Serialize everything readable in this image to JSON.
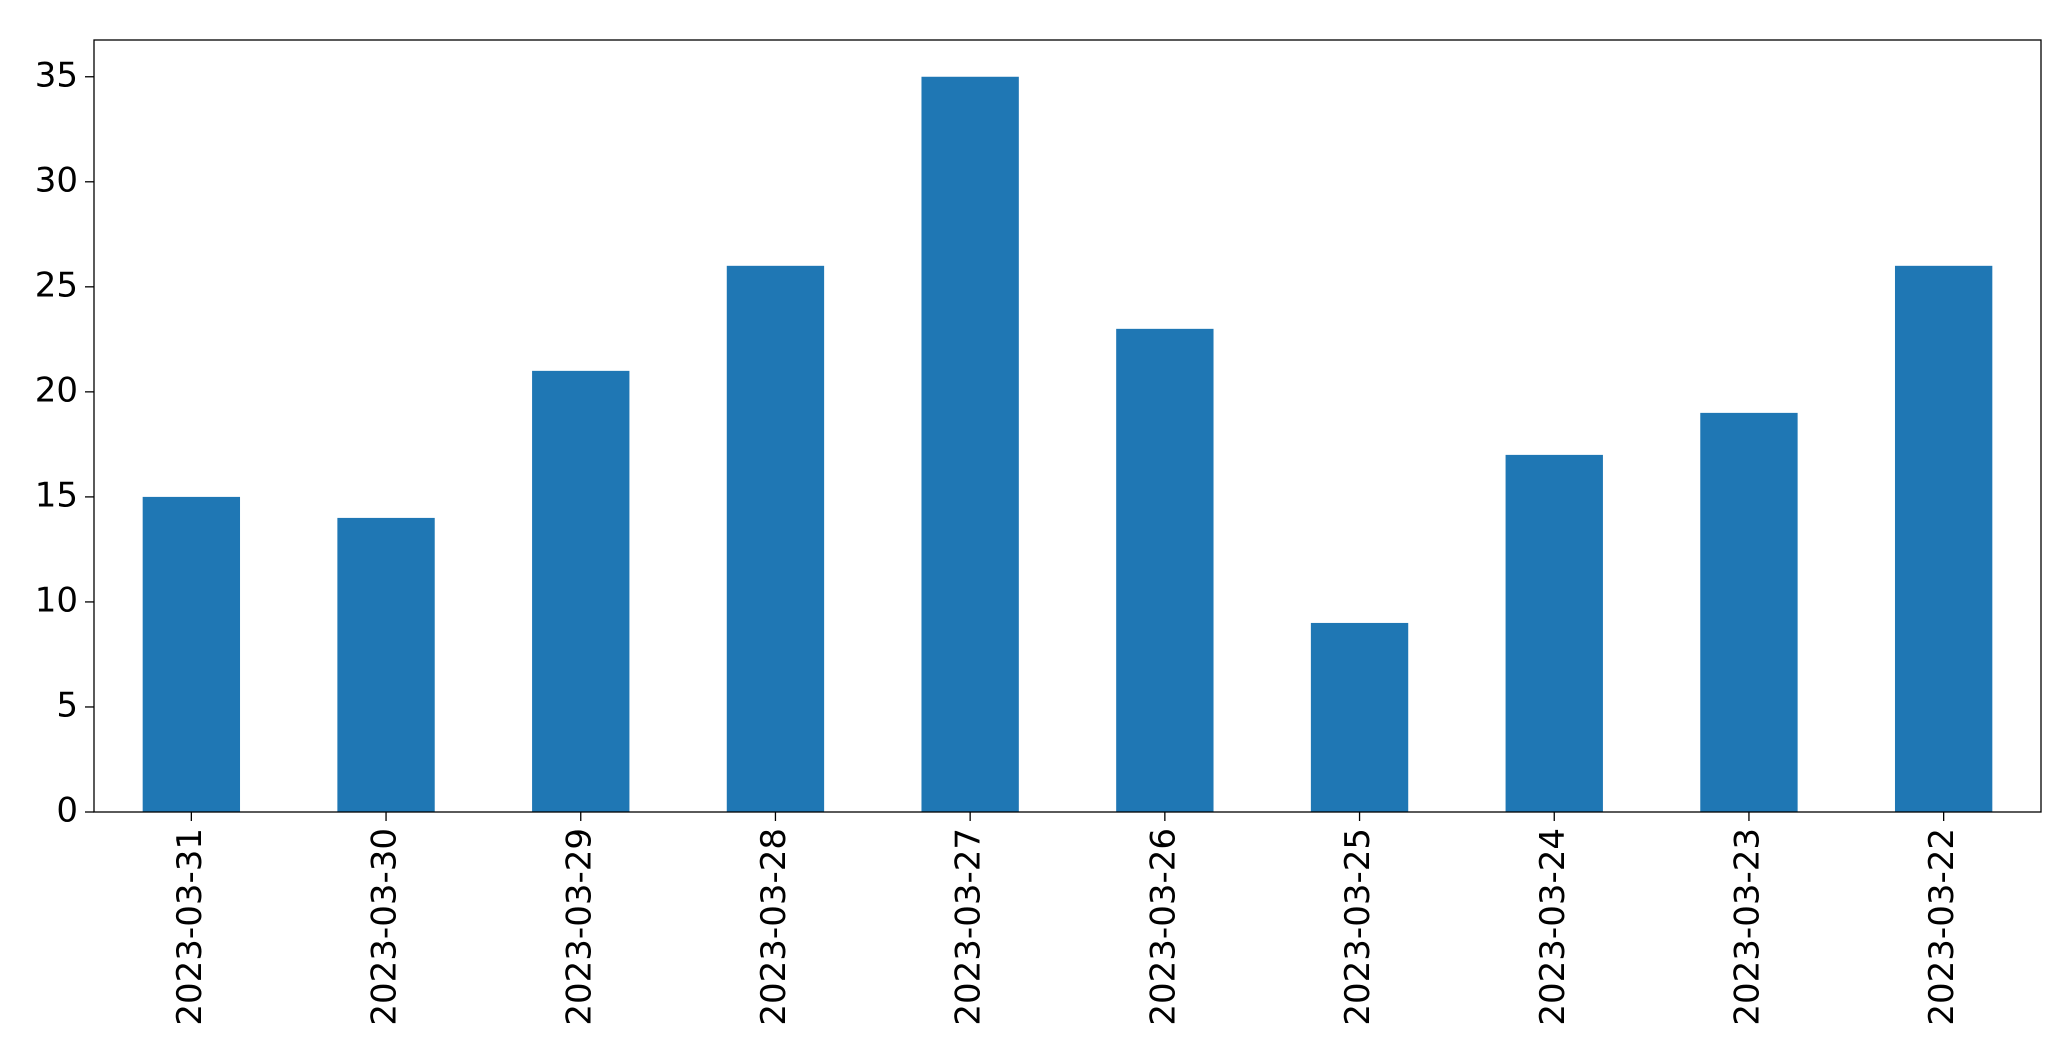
{
  "chart_data": {
    "type": "bar",
    "categories": [
      "2023-03-31",
      "2023-03-30",
      "2023-03-29",
      "2023-03-28",
      "2023-03-27",
      "2023-03-26",
      "2023-03-25",
      "2023-03-24",
      "2023-03-23",
      "2023-03-22"
    ],
    "values": [
      15,
      14,
      21,
      26,
      35,
      23,
      9,
      17,
      19,
      26
    ],
    "color": "#1f77b4",
    "ylim": [
      0,
      36.75
    ],
    "yticks": [
      0,
      5,
      10,
      15,
      20,
      25,
      30,
      35
    ],
    "grid": false
  }
}
